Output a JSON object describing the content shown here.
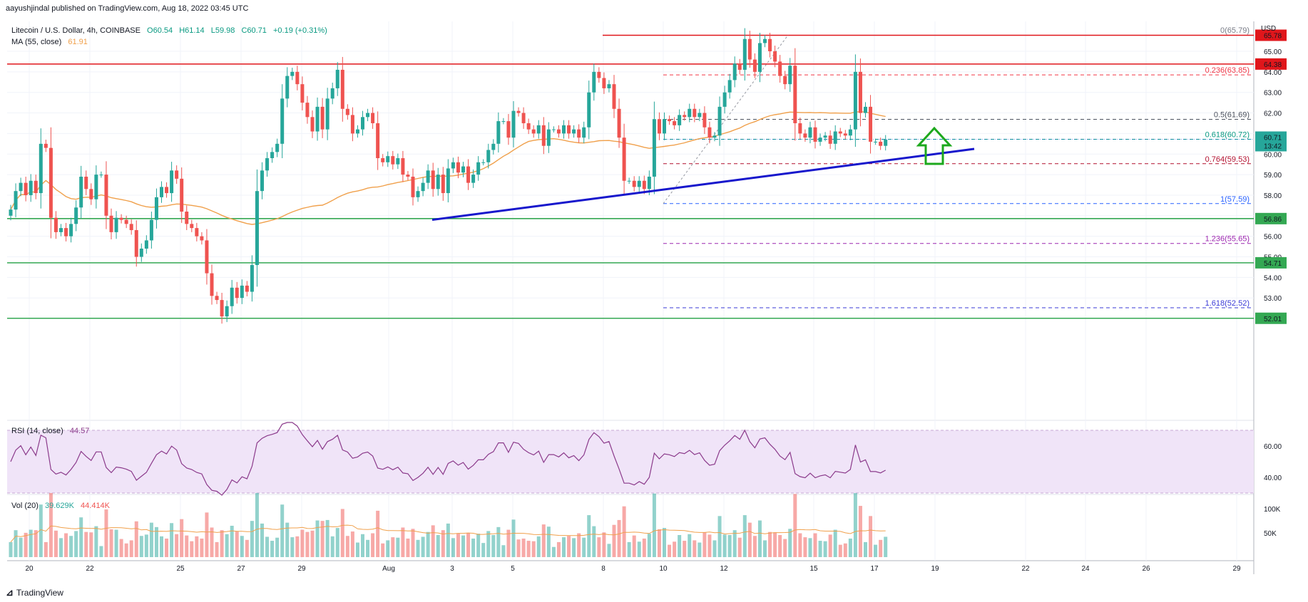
{
  "header": {
    "published": "aayushjindal published on TradingView.com, Aug 18, 2022 03:45 UTC"
  },
  "legend": {
    "symbol": "Litecoin / U.S. Dollar, 4h, COINBASE",
    "ohlc_o": "O60.54",
    "ohlc_h": "H61.14",
    "ohlc_l": "L59.98",
    "ohlc_c": "C60.71",
    "change": "+0.19 (+0.31%)",
    "ma_label": "MA (55, close)",
    "ma_value": "61.91",
    "rsi_label": "RSI (14, close)",
    "rsi_value": "44.57",
    "vol_label": "Vol (20)",
    "vol_value1": "39.629K",
    "vol_value2": "44.414K"
  },
  "axis": {
    "currency": "USD",
    "current_price": "60.71",
    "countdown": "13:42",
    "rsi_ticks": [
      "60.00",
      "40.00"
    ],
    "vol_ticks": [
      "100K",
      "50K"
    ]
  },
  "brand": {
    "name": "TradingView"
  },
  "colors": {
    "up": "#26a69a",
    "down": "#ef5350",
    "ma": "#f0a04b",
    "trendline": "#1717cc",
    "resistance": "#e0161b",
    "support": "#34a853",
    "rsi": "#8b3a8b",
    "rsi_band": "#f0e4f8",
    "arrow": "#1ca81c"
  },
  "chart_data": {
    "type": "candlestick",
    "x_ticks": [
      "20",
      "22",
      "25",
      "27",
      "29",
      "Aug",
      "3",
      "5",
      "8",
      "10",
      "12",
      "15",
      "17",
      "19",
      "22",
      "24",
      "26",
      "29"
    ],
    "y_ticks": [
      65,
      64,
      63,
      62,
      61,
      60,
      59,
      58,
      57,
      56,
      55,
      54,
      53,
      52
    ],
    "ylim": [
      51.7,
      66.2
    ],
    "price_labels": [
      {
        "value": 65.78,
        "label": "65.78",
        "color": "#e0161b"
      },
      {
        "value": 64.38,
        "label": "64.38",
        "color": "#e0161b"
      },
      {
        "value": 56.86,
        "label": "56.86",
        "color": "#34a853"
      },
      {
        "value": 54.71,
        "label": "54.71",
        "color": "#34a853"
      },
      {
        "value": 52.01,
        "label": "52.01",
        "color": "#34a853"
      }
    ],
    "fib_levels": [
      {
        "ratio": "0",
        "value": 65.79,
        "label": "0(65.79)",
        "color": "#787b86"
      },
      {
        "ratio": "0.236",
        "value": 63.85,
        "label": "0.236(63.85)",
        "color": "#f23645"
      },
      {
        "ratio": "0.5",
        "value": 61.69,
        "label": "0.5(61.69)",
        "color": "#4c525e"
      },
      {
        "ratio": "0.618",
        "value": 60.72,
        "label": "0.618(60.72)",
        "color": "#089981"
      },
      {
        "ratio": "0.764",
        "value": 59.53,
        "label": "0.764(59.53)",
        "color": "#b2102f"
      },
      {
        "ratio": "1",
        "value": 57.59,
        "label": "1(57.59)",
        "color": "#2962ff"
      },
      {
        "ratio": "1.236",
        "value": 55.65,
        "label": "1.236(55.65)",
        "color": "#9c27b0"
      },
      {
        "ratio": "1.618",
        "value": 52.52,
        "label": "1.618(52.52)",
        "color": "#3a3ad6"
      }
    ],
    "horizontal_lines": [
      {
        "value": 65.78,
        "kind": "resistance"
      },
      {
        "value": 64.38,
        "kind": "resistance"
      },
      {
        "value": 56.86,
        "kind": "support"
      },
      {
        "value": 54.71,
        "kind": "support"
      },
      {
        "value": 52.01,
        "kind": "support"
      }
    ],
    "trendline": {
      "from": {
        "x": "Aug 2",
        "y": 56.8
      },
      "to": {
        "x": "Aug 18",
        "y": 60.25
      }
    },
    "close": [
      57.3,
      58.2,
      58.6,
      58.0,
      58.7,
      58.1,
      60.5,
      60.3,
      56.9,
      56.2,
      56.4,
      56.0,
      56.6,
      57.4,
      58.9,
      58.3,
      57.8,
      59.0,
      59.0,
      57.0,
      56.2,
      56.9,
      56.8,
      56.6,
      56.3,
      55.0,
      55.4,
      55.8,
      56.8,
      57.9,
      58.4,
      58.1,
      59.2,
      58.8,
      57.2,
      56.6,
      56.4,
      56.0,
      55.8,
      54.2,
      53.1,
      52.9,
      52.1,
      52.6,
      53.5,
      53.0,
      53.6,
      53.3,
      54.6,
      58.2,
      59.2,
      59.8,
      60.1,
      60.5,
      62.7,
      63.8,
      64.0,
      63.4,
      62.5,
      61.8,
      61.1,
      62.3,
      61.2,
      62.7,
      63.2,
      64.1,
      62.2,
      61.9,
      61.0,
      61.2,
      61.8,
      62.0,
      61.5,
      59.8,
      59.6,
      59.9,
      59.5,
      59.8,
      59.0,
      58.9,
      57.9,
      58.2,
      58.6,
      59.2,
      58.3,
      59.0,
      58.1,
      59.3,
      59.6,
      59.1,
      59.4,
      58.6,
      59.0,
      59.6,
      59.6,
      60.2,
      60.5,
      61.6,
      61.6,
      60.8,
      62.1,
      62.0,
      61.5,
      61.2,
      61.0,
      61.4,
      60.4,
      61.2,
      61.2,
      61.0,
      61.4,
      61.0,
      61.2,
      60.8,
      61.3,
      63.0,
      64.0,
      63.7,
      63.2,
      63.4,
      62.2,
      60.8,
      58.7,
      58.7,
      58.4,
      58.7,
      58.3,
      58.9,
      61.7,
      61.0,
      61.7,
      61.6,
      61.4,
      61.9,
      61.8,
      62.2,
      61.8,
      62.0,
      61.3,
      60.8,
      60.9,
      62.3,
      63.0,
      63.6,
      64.4,
      64.1,
      65.6,
      64.6,
      64.0,
      65.4,
      65.6,
      65.0,
      64.5,
      63.8,
      63.4,
      64.3,
      61.5,
      61.0,
      60.8,
      61.3,
      60.6,
      60.8,
      60.9,
      60.5,
      61.1,
      61.0,
      60.9,
      61.2,
      64.0,
      62.0,
      62.3,
      60.6,
      60.6,
      60.4,
      60.7
    ]
  }
}
